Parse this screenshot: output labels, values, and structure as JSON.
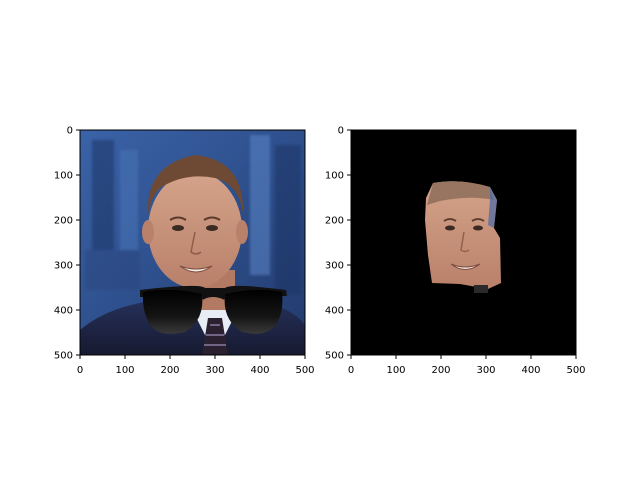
{
  "figure": {
    "background": "#ffffff",
    "panels": [
      {
        "id": "original-with-sunglasses",
        "content": "photo of smiling man in suit with sunglasses overlay on chin area",
        "x_ticks": [
          "0",
          "100",
          "200",
          "300",
          "400",
          "500"
        ],
        "y_ticks": [
          "0",
          "100",
          "200",
          "300",
          "400",
          "500"
        ],
        "x_range": [
          0,
          500
        ],
        "y_range": [
          0,
          500
        ],
        "y_inverted": true
      },
      {
        "id": "masked-face",
        "content": "black background with only the face region visible",
        "x_ticks": [
          "0",
          "100",
          "200",
          "300",
          "400",
          "500"
        ],
        "y_ticks": [
          "0",
          "100",
          "200",
          "300",
          "400",
          "500"
        ],
        "x_range": [
          0,
          500
        ],
        "y_range": [
          0,
          500
        ],
        "y_inverted": true
      }
    ],
    "colors": {
      "background_blue": "#2e4f8c",
      "suit_navy": "#1f2440",
      "skin": "#c9957a",
      "hair": "#6e4a34",
      "mask_black": "#000000",
      "lens_black": "#0b0b0b"
    }
  }
}
